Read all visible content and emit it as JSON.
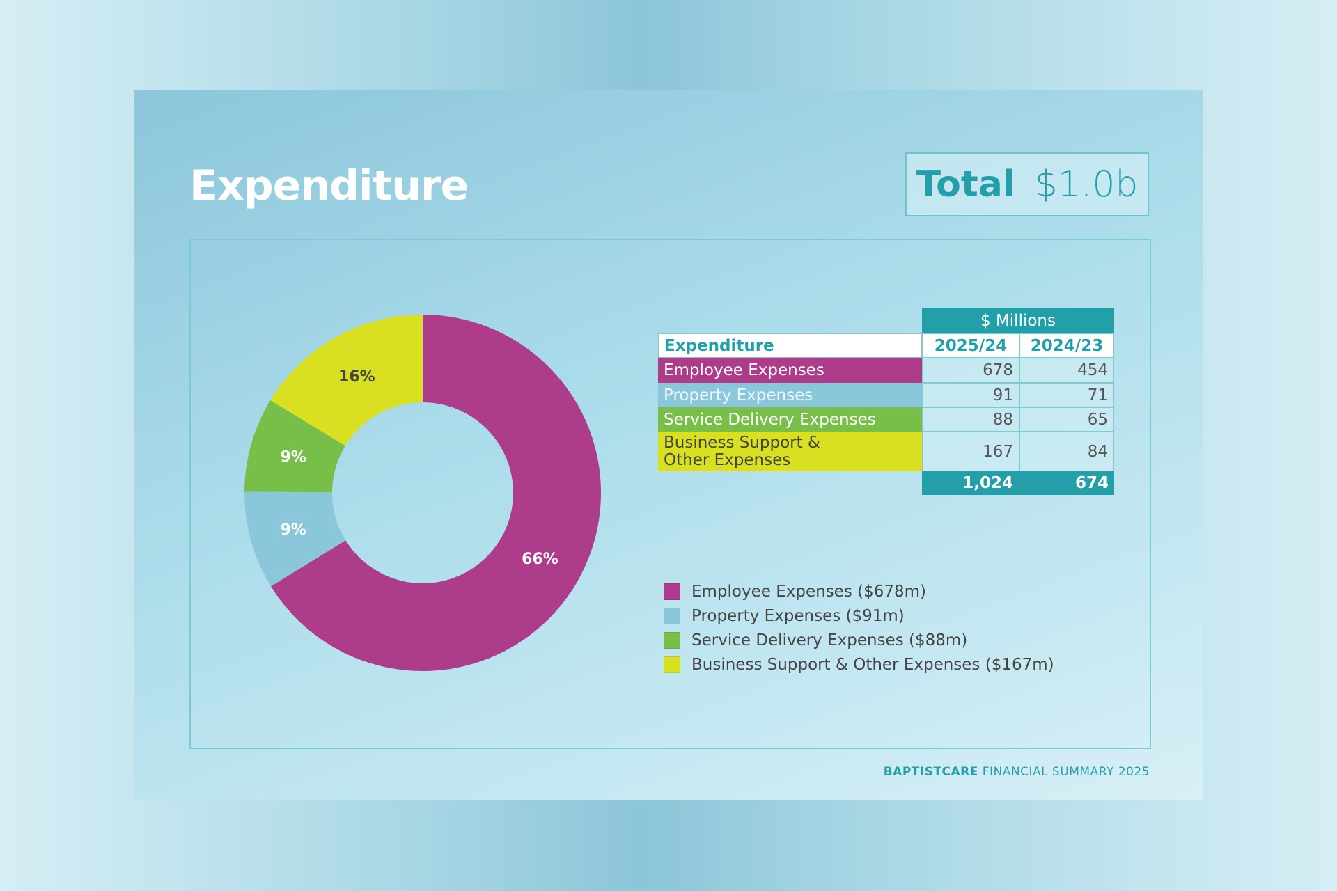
{
  "title": "Expenditure",
  "total": {
    "label": "Total",
    "value": "$1.0b"
  },
  "colors": {
    "employee": "#ad3c8a",
    "property": "#8ac7da",
    "service": "#78bf4a",
    "business": "#d9e021",
    "teal": "#229fa8"
  },
  "chart_data": {
    "type": "pie",
    "donut": true,
    "categories": [
      "Employee Expenses",
      "Property Expenses",
      "Service Delivery Expenses",
      "Business Support & Other Expenses"
    ],
    "values": [
      678,
      91,
      88,
      167
    ],
    "labels": [
      "66%",
      "9%",
      "9%",
      "16%"
    ],
    "start": "top",
    "direction": "clockwise"
  },
  "table": {
    "units": "$ Millions",
    "headers": [
      "Expenditure",
      "2025/24",
      "2024/23"
    ],
    "rows": [
      {
        "label": "Employee Expenses",
        "a": "678",
        "b": "454"
      },
      {
        "label": "Property Expenses",
        "a": "91",
        "b": "71"
      },
      {
        "label": "Service Delivery Expenses",
        "a": "88",
        "b": "65"
      },
      {
        "label1": "Business Support &",
        "label2": "Other Expenses",
        "a": "167",
        "b": "84"
      }
    ],
    "totals": {
      "a": "1,024",
      "b": "674"
    }
  },
  "legend": [
    "Employee Expenses ($678m)",
    "Property Expenses ($91m)",
    "Service Delivery Expenses ($88m)",
    "Business Support & Other Expenses ($167m)"
  ],
  "footer": {
    "brand": "BAPTISTCARE",
    "text": " FINANCIAL SUMMARY 2025"
  }
}
